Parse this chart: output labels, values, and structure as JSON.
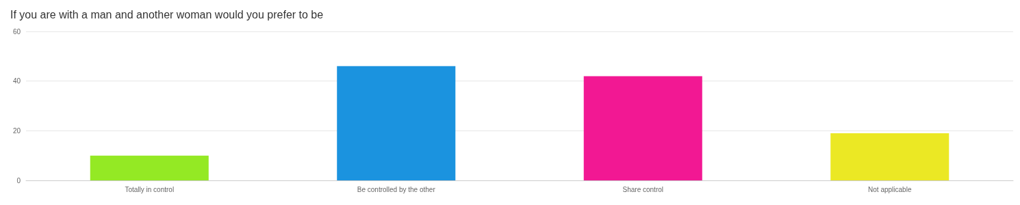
{
  "chart_data": {
    "type": "bar",
    "title": "If you are with a man and another woman would you prefer to be",
    "categories": [
      "Totally in control",
      "Be controlled by the other",
      "Share control",
      "Not applicable"
    ],
    "values": [
      10,
      46,
      42,
      19
    ],
    "colors": [
      "#94e924",
      "#1b93df",
      "#f21893",
      "#ebe824"
    ],
    "ylim": [
      0,
      60
    ],
    "yticks": [
      0,
      20,
      40,
      60
    ],
    "grid": "y"
  }
}
